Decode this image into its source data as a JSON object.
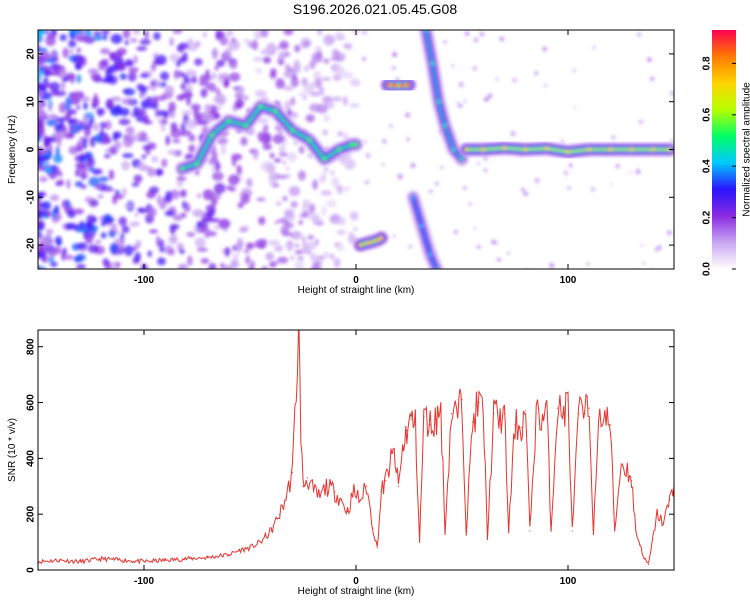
{
  "title": "S196.2026.021.05.45.G08",
  "colors": {
    "snr_line": "#e8332e",
    "axis": "#000000",
    "colormap": [
      "#ffffff",
      "#c9a6f2",
      "#8a2be2",
      "#2a14ff",
      "#00c8ff",
      "#00ff66",
      "#b6ff00",
      "#ffd400",
      "#ff7a00",
      "#ff0050"
    ]
  },
  "chart_data": [
    {
      "type": "heatmap",
      "xlabel": "Height of straight line (km)",
      "ylabel": "Frequency (Hz)",
      "xlim": [
        -150,
        150
      ],
      "ylim": [
        -25,
        25
      ],
      "xticks": [
        -100,
        0,
        100
      ],
      "yticks": [
        -20,
        -10,
        0,
        10,
        20
      ],
      "colorbar": {
        "label": "Normalized spectral amplitude",
        "range": [
          0,
          0.93
        ],
        "ticks": [
          0.0,
          0.2,
          0.4,
          0.6,
          0.8
        ]
      },
      "ridges": [
        {
          "points": [
            [
              -82,
              -4
            ],
            [
              -75,
              -3
            ],
            [
              -68,
              3
            ],
            [
              -60,
              6
            ],
            [
              -52,
              5
            ],
            [
              -45,
              9
            ],
            [
              -38,
              8
            ],
            [
              -30,
              4
            ],
            [
              -22,
              2
            ],
            [
              -15,
              -2
            ],
            [
              -8,
              0
            ],
            [
              -2,
              1
            ],
            [
              0,
              1
            ]
          ],
          "amplitude": 0.55
        },
        {
          "points": [
            [
              15,
              13.5
            ],
            [
              18,
              13.4
            ],
            [
              22,
              13.4
            ],
            [
              25,
              13.5
            ]
          ],
          "amplitude": 0.88
        },
        {
          "points": [
            [
              2,
              -20
            ],
            [
              6,
              -19.5
            ],
            [
              10,
              -19
            ],
            [
              12,
              -18.5
            ]
          ],
          "amplitude": 0.75
        },
        {
          "points": [
            [
              33,
              25
            ],
            [
              36,
              18
            ],
            [
              39,
              10
            ],
            [
              42,
              5
            ],
            [
              46,
              0
            ],
            [
              50,
              -2
            ]
          ],
          "amplitude": 0.45
        },
        {
          "points": [
            [
              27,
              -10
            ],
            [
              31,
              -16
            ],
            [
              35,
              -22
            ],
            [
              38,
              -25
            ]
          ],
          "amplitude": 0.4
        },
        {
          "points": [
            [
              52,
              0
            ],
            [
              60,
              0
            ],
            [
              70,
              0.3
            ],
            [
              80,
              0
            ],
            [
              90,
              0.2
            ],
            [
              100,
              -0.5
            ],
            [
              110,
              0
            ],
            [
              120,
              0
            ],
            [
              130,
              0
            ],
            [
              140,
              0
            ],
            [
              148,
              0
            ]
          ],
          "amplitude": 0.7
        }
      ]
    },
    {
      "type": "line",
      "xlabel": "Height of straight line (km)",
      "ylabel": "SNR (10 * v/v)",
      "xlim": [
        -150,
        150
      ],
      "ylim": [
        0,
        860
      ],
      "xticks": [
        -100,
        0,
        100
      ],
      "yticks": [
        0,
        200,
        400,
        600,
        800
      ],
      "series": [
        {
          "x": [
            -150,
            -140,
            -130,
            -120,
            -110,
            -100,
            -90,
            -80,
            -70,
            -60,
            -55,
            -50,
            -45,
            -40,
            -36,
            -33,
            -30,
            -27,
            -26,
            -25,
            -23,
            -20,
            -17,
            -14,
            -10,
            -7,
            -4,
            -1,
            2,
            5,
            8,
            10,
            12,
            14,
            16,
            18,
            20,
            22,
            24,
            26,
            28,
            30,
            32,
            35,
            38,
            40,
            42,
            45,
            48,
            50,
            52,
            55,
            58,
            60,
            62,
            65,
            68,
            70,
            72,
            75,
            78,
            80,
            82,
            85,
            88,
            90,
            92,
            95,
            98,
            100,
            102,
            105,
            108,
            110,
            112,
            115,
            118,
            120,
            122,
            125,
            128,
            130,
            132,
            134,
            136,
            138,
            140,
            142,
            145,
            148,
            150
          ],
          "y": [
            30,
            35,
            30,
            40,
            35,
            30,
            35,
            40,
            45,
            55,
            70,
            80,
            100,
            140,
            200,
            260,
            350,
            860,
            500,
            300,
            330,
            280,
            260,
            300,
            280,
            250,
            210,
            280,
            250,
            300,
            150,
            80,
            280,
            320,
            380,
            420,
            300,
            430,
            500,
            540,
            520,
            100,
            550,
            520,
            540,
            580,
            140,
            560,
            560,
            610,
            140,
            530,
            600,
            570,
            120,
            560,
            540,
            560,
            140,
            520,
            510,
            570,
            140,
            560,
            540,
            590,
            140,
            580,
            560,
            610,
            140,
            560,
            560,
            580,
            140,
            570,
            540,
            520,
            140,
            380,
            360,
            320,
            140,
            90,
            40,
            20,
            110,
            200,
            170,
            250,
            300
          ]
        }
      ]
    }
  ]
}
